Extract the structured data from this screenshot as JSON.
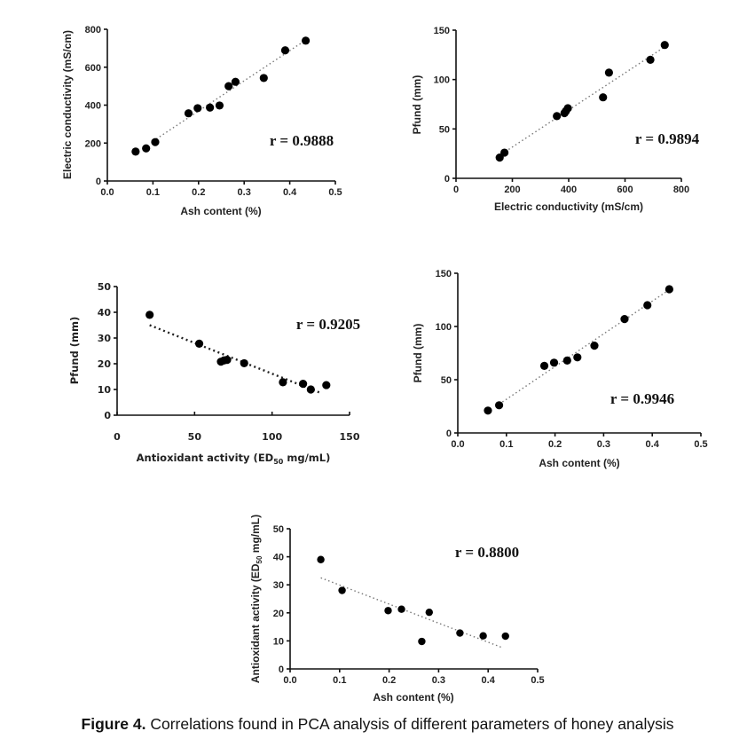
{
  "caption": {
    "prefix": "Figure 4.",
    "text": " Correlations found in PCA analysis of different parameters of honey analysis"
  },
  "chart_data": [
    {
      "id": "ec-vs-ash",
      "type": "scatter",
      "title": "",
      "xlabel": "Ash content (%)",
      "ylabel": "Electric conductivity (mS/cm)",
      "xlim": [
        0,
        0.5
      ],
      "ylim": [
        0,
        800
      ],
      "xticks": [
        "0.0",
        "0.1",
        "0.2",
        "0.3",
        "0.4",
        "0.5"
      ],
      "xtick_values": [
        0,
        0.1,
        0.2,
        0.3,
        0.4,
        0.5
      ],
      "yticks": [
        "0",
        "200",
        "400",
        "600",
        "800"
      ],
      "ytick_values": [
        0,
        200,
        400,
        600,
        800
      ],
      "annotation": "r = 0.9888",
      "trendline": {
        "style": "dotted",
        "from": [
          0.1,
          210
        ],
        "to": [
          0.43,
          735
        ]
      },
      "points": [
        [
          0.062,
          155
        ],
        [
          0.085,
          172
        ],
        [
          0.105,
          205
        ],
        [
          0.178,
          357
        ],
        [
          0.198,
          384
        ],
        [
          0.225,
          387
        ],
        [
          0.246,
          398
        ],
        [
          0.266,
          500
        ],
        [
          0.281,
          523
        ],
        [
          0.343,
          543
        ],
        [
          0.39,
          689
        ],
        [
          0.435,
          740
        ]
      ]
    },
    {
      "id": "pfund-vs-ec",
      "type": "scatter",
      "title": "",
      "xlabel": "Electric conductivity (mS/cm)",
      "ylabel": "Pfund (mm)",
      "xlim": [
        0,
        800
      ],
      "ylim": [
        0,
        150
      ],
      "xticks": [
        "0",
        "200",
        "400",
        "600",
        "800"
      ],
      "xtick_values": [
        0,
        200,
        400,
        600,
        800
      ],
      "yticks": [
        "0",
        "50",
        "100",
        "150"
      ],
      "ytick_values": [
        0,
        50,
        100,
        150
      ],
      "annotation": "r = 0.9894",
      "trendline": {
        "style": "dotted",
        "from": [
          175,
          27
        ],
        "to": [
          735,
          132
        ]
      },
      "points": [
        [
          155,
          21
        ],
        [
          172,
          26
        ],
        [
          358,
          63
        ],
        [
          385,
          66
        ],
        [
          390,
          68
        ],
        [
          397,
          71
        ],
        [
          522,
          82
        ],
        [
          543,
          107
        ],
        [
          690,
          120
        ],
        [
          741,
          135
        ]
      ]
    },
    {
      "id": "pfund-vs-antioxidant",
      "type": "scatter",
      "title": "",
      "xlabel": "Antioxidant activity (ED",
      "xlabel_sub": "50",
      "xlabel_suffix": " mg/mL)",
      "ylabel": "Pfund (mm)",
      "xlim": [
        0,
        150
      ],
      "ylim": [
        0,
        50
      ],
      "xticks": [
        "0",
        "50",
        "100",
        "150"
      ],
      "xtick_values": [
        0,
        50,
        100,
        150
      ],
      "yticks": [
        "0",
        "10",
        "20",
        "30",
        "40",
        "50"
      ],
      "ytick_values": [
        0,
        10,
        20,
        30,
        40,
        50
      ],
      "annotation": "r = 0.9205",
      "trendline": {
        "style": "dotted",
        "from": [
          21,
          35
        ],
        "to": [
          132,
          8.5
        ]
      },
      "points": [
        [
          21,
          39
        ],
        [
          53,
          27.8
        ],
        [
          67,
          20.8
        ],
        [
          69,
          21.3
        ],
        [
          71,
          21.5
        ],
        [
          82,
          20.2
        ],
        [
          107,
          12.8
        ],
        [
          120,
          12.2
        ],
        [
          125,
          10
        ],
        [
          135,
          11.7
        ]
      ]
    },
    {
      "id": "pfund-vs-ash",
      "type": "scatter",
      "title": "",
      "xlabel": "Ash content (%)",
      "ylabel": "Pfund (mm)",
      "xlim": [
        0,
        0.5
      ],
      "ylim": [
        0,
        150
      ],
      "xticks": [
        "0.0",
        "0.1",
        "0.2",
        "0.3",
        "0.4",
        "0.5"
      ],
      "xtick_values": [
        0,
        0.1,
        0.2,
        0.3,
        0.4,
        0.5
      ],
      "yticks": [
        "0",
        "50",
        "100",
        "150"
      ],
      "ytick_values": [
        0,
        50,
        100,
        150
      ],
      "annotation": "r = 0.9946",
      "trendline": {
        "style": "dotted",
        "from": [
          0.085,
          27
        ],
        "to": [
          0.43,
          133
        ]
      },
      "points": [
        [
          0.062,
          21
        ],
        [
          0.085,
          26
        ],
        [
          0.178,
          63
        ],
        [
          0.198,
          66
        ],
        [
          0.225,
          68
        ],
        [
          0.246,
          71
        ],
        [
          0.281,
          82
        ],
        [
          0.343,
          107
        ],
        [
          0.39,
          120
        ],
        [
          0.435,
          135
        ]
      ]
    },
    {
      "id": "antioxidant-vs-ash",
      "type": "scatter",
      "title": "",
      "xlabel": "Ash content (%)",
      "ylabel": "Antioxidant activity (ED",
      "ylabel_sub": "50",
      "ylabel_suffix": " mg/mL)",
      "xlim": [
        0,
        0.5
      ],
      "ylim": [
        0,
        50
      ],
      "xticks": [
        "0.0",
        "0.1",
        "0.2",
        "0.3",
        "0.4",
        "0.5"
      ],
      "xtick_values": [
        0,
        0.1,
        0.2,
        0.3,
        0.4,
        0.5
      ],
      "yticks": [
        "0",
        "10",
        "20",
        "30",
        "40",
        "50"
      ],
      "ytick_values": [
        0,
        10,
        20,
        30,
        40,
        50
      ],
      "annotation": "r = 0.8800",
      "trendline": {
        "style": "dotted",
        "from": [
          0.062,
          32.5
        ],
        "to": [
          0.43,
          7.5
        ]
      },
      "points": [
        [
          0.062,
          39
        ],
        [
          0.105,
          28
        ],
        [
          0.198,
          20.8
        ],
        [
          0.225,
          21.3
        ],
        [
          0.266,
          9.8
        ],
        [
          0.281,
          20.2
        ],
        [
          0.343,
          12.8
        ],
        [
          0.39,
          11.8
        ],
        [
          0.435,
          11.7
        ]
      ]
    }
  ]
}
